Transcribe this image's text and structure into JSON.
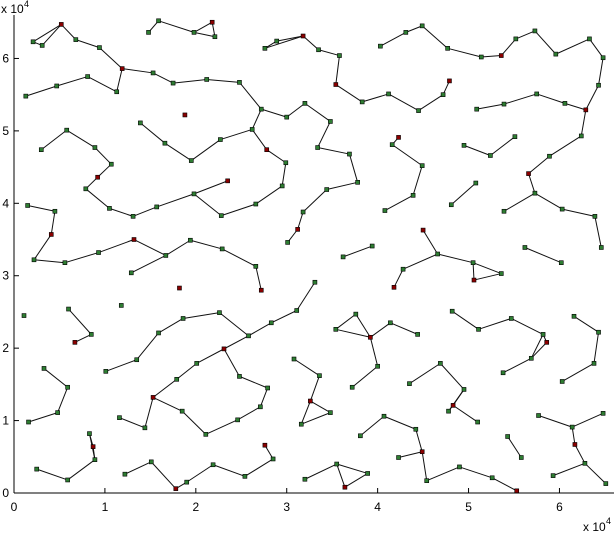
{
  "chart_data": {
    "type": "scatter",
    "title": "",
    "xlabel": "",
    "ylabel": "",
    "xlim": [
      0,
      66000
    ],
    "ylim": [
      0,
      66000
    ],
    "x_ticks": [
      0,
      1,
      2,
      3,
      4,
      5,
      6
    ],
    "y_ticks": [
      0,
      1,
      2,
      3,
      4,
      5,
      6
    ],
    "x_multiplier": {
      "base": "x 10",
      "exponent": "4"
    },
    "y_multiplier": {
      "base": "x 10",
      "exponent": "4"
    },
    "grid": false,
    "series": [
      {
        "marker": "square",
        "color": "#2e7d32",
        "points": [
          [
            2100,
            62300
          ],
          [
            3100,
            61800
          ],
          [
            6800,
            62600
          ],
          [
            9400,
            61500
          ],
          [
            14800,
            63600
          ],
          [
            15900,
            65200
          ],
          [
            19800,
            63600
          ],
          [
            22100,
            63000
          ],
          [
            27600,
            61400
          ],
          [
            28900,
            62400
          ],
          [
            33500,
            61200
          ],
          [
            35800,
            60400
          ],
          [
            40300,
            61700
          ],
          [
            43100,
            63600
          ],
          [
            44900,
            64500
          ],
          [
            47700,
            61400
          ],
          [
            51400,
            60200
          ],
          [
            55200,
            62700
          ],
          [
            57300,
            63800
          ],
          [
            59600,
            60600
          ],
          [
            63300,
            62700
          ],
          [
            64800,
            60100
          ],
          [
            1300,
            54800
          ],
          [
            4700,
            56200
          ],
          [
            8100,
            57500
          ],
          [
            11300,
            55400
          ],
          [
            15300,
            58000
          ],
          [
            17500,
            56600
          ],
          [
            21200,
            57100
          ],
          [
            24800,
            56700
          ],
          [
            27200,
            53000
          ],
          [
            30000,
            51900
          ],
          [
            32000,
            53800
          ],
          [
            34800,
            51300
          ],
          [
            38300,
            54000
          ],
          [
            41200,
            55100
          ],
          [
            44500,
            52800
          ],
          [
            47200,
            55000
          ],
          [
            50900,
            53000
          ],
          [
            53900,
            53700
          ],
          [
            57500,
            55100
          ],
          [
            60600,
            53800
          ],
          [
            64300,
            56300
          ],
          [
            3000,
            47400
          ],
          [
            5800,
            50100
          ],
          [
            8900,
            47700
          ],
          [
            10700,
            45400
          ],
          [
            13900,
            51100
          ],
          [
            16600,
            48300
          ],
          [
            19500,
            45900
          ],
          [
            22700,
            48800
          ],
          [
            26200,
            50200
          ],
          [
            29900,
            45600
          ],
          [
            33400,
            47700
          ],
          [
            36900,
            46800
          ],
          [
            41600,
            48100
          ],
          [
            44900,
            45200
          ],
          [
            49500,
            48000
          ],
          [
            52400,
            46600
          ],
          [
            55100,
            49200
          ],
          [
            58900,
            46500
          ],
          [
            62400,
            49300
          ],
          [
            1500,
            39700
          ],
          [
            4500,
            38900
          ],
          [
            7900,
            42000
          ],
          [
            10500,
            39300
          ],
          [
            13100,
            38200
          ],
          [
            15700,
            39500
          ],
          [
            19800,
            41300
          ],
          [
            22800,
            38300
          ],
          [
            26600,
            39900
          ],
          [
            29500,
            42400
          ],
          [
            31800,
            38800
          ],
          [
            34400,
            41900
          ],
          [
            37800,
            42900
          ],
          [
            40800,
            39000
          ],
          [
            43900,
            41100
          ],
          [
            48100,
            39800
          ],
          [
            50800,
            42800
          ],
          [
            53900,
            38900
          ],
          [
            57300,
            41400
          ],
          [
            60300,
            39200
          ],
          [
            63900,
            38200
          ],
          [
            2200,
            32200
          ],
          [
            5600,
            31800
          ],
          [
            9300,
            33200
          ],
          [
            12900,
            30400
          ],
          [
            16700,
            32800
          ],
          [
            19400,
            34900
          ],
          [
            22900,
            33700
          ],
          [
            26600,
            31300
          ],
          [
            30100,
            34600
          ],
          [
            33100,
            29100
          ],
          [
            36200,
            32600
          ],
          [
            39400,
            34100
          ],
          [
            42800,
            30900
          ],
          [
            46600,
            33000
          ],
          [
            50500,
            31800
          ],
          [
            53600,
            30300
          ],
          [
            56200,
            33900
          ],
          [
            60200,
            31800
          ],
          [
            64600,
            33900
          ],
          [
            1100,
            24500
          ],
          [
            6000,
            25400
          ],
          [
            8500,
            21900
          ],
          [
            11800,
            25900
          ],
          [
            15900,
            22100
          ],
          [
            18600,
            24100
          ],
          [
            22600,
            24900
          ],
          [
            25800,
            21700
          ],
          [
            28300,
            23500
          ],
          [
            31100,
            25200
          ],
          [
            35400,
            22600
          ],
          [
            37600,
            24700
          ],
          [
            41400,
            23500
          ],
          [
            44400,
            21900
          ],
          [
            48200,
            25100
          ],
          [
            51100,
            22600
          ],
          [
            54700,
            24100
          ],
          [
            58200,
            21900
          ],
          [
            61600,
            24400
          ],
          [
            64300,
            22200
          ],
          [
            3300,
            17200
          ],
          [
            5900,
            14600
          ],
          [
            10100,
            16800
          ],
          [
            13500,
            18400
          ],
          [
            17900,
            15700
          ],
          [
            20100,
            17900
          ],
          [
            24800,
            16100
          ],
          [
            27900,
            14500
          ],
          [
            30800,
            18500
          ],
          [
            33600,
            16200
          ],
          [
            37200,
            14600
          ],
          [
            40000,
            17500
          ],
          [
            43500,
            15100
          ],
          [
            46900,
            17900
          ],
          [
            49500,
            14300
          ],
          [
            53800,
            16600
          ],
          [
            56900,
            18600
          ],
          [
            60300,
            15400
          ],
          [
            63800,
            17900
          ],
          [
            1600,
            9800
          ],
          [
            4800,
            11100
          ],
          [
            8300,
            8200
          ],
          [
            11600,
            10400
          ],
          [
            14400,
            9000
          ],
          [
            18500,
            11300
          ],
          [
            21100,
            8100
          ],
          [
            24600,
            10100
          ],
          [
            27100,
            11900
          ],
          [
            31600,
            9500
          ],
          [
            34800,
            11100
          ],
          [
            38100,
            7900
          ],
          [
            40700,
            10600
          ],
          [
            44200,
            8800
          ],
          [
            47800,
            11300
          ],
          [
            51000,
            9800
          ],
          [
            54300,
            7800
          ],
          [
            57700,
            10700
          ],
          [
            61400,
            9100
          ],
          [
            64800,
            11000
          ],
          [
            2500,
            3300
          ],
          [
            5900,
            1800
          ],
          [
            8900,
            4600
          ],
          [
            12200,
            2600
          ],
          [
            15100,
            4300
          ],
          [
            19000,
            1500
          ],
          [
            21900,
            3900
          ],
          [
            25400,
            2300
          ],
          [
            28500,
            4700
          ],
          [
            32000,
            1900
          ],
          [
            35500,
            4000
          ],
          [
            38900,
            2700
          ],
          [
            42300,
            4900
          ],
          [
            45400,
            1700
          ],
          [
            49000,
            3600
          ],
          [
            52600,
            2100
          ],
          [
            55800,
            4900
          ],
          [
            59300,
            2400
          ],
          [
            62800,
            4100
          ],
          [
            65100,
            1300
          ]
        ]
      },
      {
        "marker": "square",
        "color": "#8b0000",
        "points": [
          [
            5200,
            64700
          ],
          [
            21800,
            65000
          ],
          [
            31800,
            63100
          ],
          [
            53600,
            60400
          ],
          [
            11900,
            58600
          ],
          [
            35400,
            56400
          ],
          [
            47900,
            56900
          ],
          [
            62900,
            52900
          ],
          [
            18800,
            52200
          ],
          [
            27800,
            47400
          ],
          [
            42300,
            49100
          ],
          [
            9200,
            43600
          ],
          [
            23500,
            43100
          ],
          [
            56600,
            44100
          ],
          [
            4100,
            35700
          ],
          [
            13200,
            35000
          ],
          [
            31200,
            36400
          ],
          [
            45000,
            36300
          ],
          [
            18200,
            28300
          ],
          [
            27200,
            28000
          ],
          [
            41800,
            28400
          ],
          [
            50600,
            29400
          ],
          [
            6700,
            20800
          ],
          [
            23100,
            19900
          ],
          [
            39200,
            21500
          ],
          [
            58600,
            20800
          ],
          [
            15300,
            13200
          ],
          [
            32600,
            12700
          ],
          [
            48300,
            12100
          ],
          [
            8700,
            6400
          ],
          [
            27600,
            6600
          ],
          [
            44900,
            5700
          ],
          [
            61700,
            6700
          ],
          [
            17800,
            600
          ],
          [
            36400,
            800
          ],
          [
            55300,
            300
          ]
        ]
      }
    ],
    "edges_present": true
  }
}
